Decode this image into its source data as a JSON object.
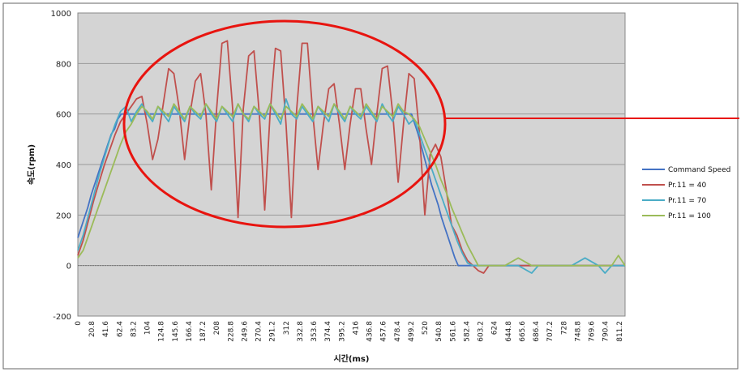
{
  "chart_data": {
    "type": "line",
    "title": "",
    "xlabel": "시간(ms)",
    "ylabel": "속도(rpm)",
    "ylim": [
      -200,
      1000
    ],
    "yticks": [
      -200,
      0,
      200,
      400,
      600,
      800,
      1000
    ],
    "grid": true,
    "legend_position": "right",
    "x_tick_labels": [
      "0",
      "20.8",
      "41.6",
      "62.4",
      "83.2",
      "104",
      "124.8",
      "145.6",
      "166.4",
      "187.2",
      "208",
      "228.8",
      "249.6",
      "270.4",
      "291.2",
      "312",
      "332.8",
      "353.6",
      "374.4",
      "395.2",
      "416",
      "436.8",
      "457.6",
      "478.4",
      "499.2",
      "520",
      "540.8",
      "561.6",
      "582.4",
      "603.2",
      "624",
      "644.8",
      "665.6",
      "686.4",
      "707.2",
      "728",
      "748.8",
      "769.6",
      "790.4",
      "811.2"
    ],
    "xlim": [
      0,
      820
    ],
    "series": [
      {
        "name": "Command Speed",
        "color": "#4472c4",
        "x": [
          0,
          5,
          10,
          15,
          20,
          25,
          30,
          35,
          40,
          45,
          50,
          55,
          60,
          65,
          70,
          500,
          505,
          510,
          515,
          520,
          525,
          530,
          535,
          540,
          545,
          550,
          555,
          560,
          565,
          570,
          820
        ],
        "y": [
          110,
          150,
          190,
          230,
          280,
          320,
          360,
          400,
          440,
          480,
          520,
          540,
          580,
          600,
          600,
          600,
          560,
          520,
          470,
          420,
          370,
          320,
          280,
          240,
          190,
          150,
          110,
          70,
          30,
          0,
          0
        ]
      },
      {
        "name": "Pr.11 =  40",
        "color": "#c0504d",
        "x": [
          0,
          8,
          16,
          24,
          32,
          40,
          48,
          56,
          64,
          72,
          80,
          88,
          96,
          104,
          112,
          120,
          128,
          136,
          144,
          152,
          160,
          168,
          176,
          184,
          192,
          200,
          208,
          216,
          224,
          232,
          240,
          248,
          256,
          264,
          272,
          280,
          288,
          296,
          304,
          312,
          320,
          328,
          336,
          344,
          352,
          360,
          368,
          376,
          384,
          392,
          400,
          408,
          416,
          424,
          432,
          440,
          448,
          456,
          464,
          472,
          480,
          488,
          496,
          504,
          512,
          520,
          528,
          536,
          544,
          552,
          560,
          568,
          576,
          584,
          592,
          600,
          608,
          616,
          820
        ],
        "y": [
          40,
          100,
          180,
          260,
          330,
          400,
          460,
          520,
          570,
          600,
          630,
          660,
          670,
          560,
          420,
          500,
          640,
          780,
          760,
          620,
          420,
          600,
          730,
          760,
          600,
          300,
          620,
          880,
          890,
          620,
          190,
          620,
          830,
          850,
          600,
          220,
          600,
          860,
          850,
          560,
          190,
          620,
          880,
          880,
          600,
          380,
          560,
          700,
          720,
          560,
          380,
          560,
          700,
          700,
          540,
          400,
          600,
          780,
          790,
          600,
          330,
          560,
          760,
          740,
          520,
          200,
          440,
          480,
          430,
          300,
          160,
          120,
          60,
          20,
          0,
          -20,
          -30,
          0,
          0
        ]
      },
      {
        "name": "Pr.11 =  70",
        "color": "#4bacc6",
        "x": [
          0,
          8,
          16,
          24,
          32,
          40,
          48,
          56,
          64,
          72,
          80,
          88,
          96,
          104,
          112,
          120,
          128,
          136,
          144,
          152,
          160,
          168,
          176,
          184,
          192,
          200,
          208,
          216,
          224,
          232,
          240,
          248,
          256,
          264,
          272,
          280,
          288,
          296,
          304,
          312,
          320,
          328,
          336,
          344,
          352,
          360,
          368,
          376,
          384,
          392,
          400,
          408,
          416,
          424,
          432,
          440,
          448,
          456,
          464,
          472,
          480,
          488,
          496,
          504,
          512,
          520,
          528,
          536,
          544,
          552,
          560,
          568,
          576,
          584,
          592,
          600,
          660,
          680,
          690,
          740,
          760,
          780,
          790,
          800,
          820
        ],
        "y": [
          60,
          120,
          200,
          280,
          360,
          430,
          500,
          560,
          610,
          630,
          570,
          610,
          640,
          600,
          570,
          630,
          600,
          570,
          630,
          600,
          570,
          630,
          600,
          580,
          640,
          600,
          570,
          630,
          600,
          570,
          640,
          600,
          570,
          630,
          600,
          580,
          640,
          600,
          560,
          660,
          600,
          580,
          630,
          600,
          570,
          630,
          600,
          570,
          640,
          600,
          570,
          630,
          600,
          580,
          630,
          600,
          570,
          640,
          600,
          570,
          630,
          600,
          560,
          580,
          520,
          460,
          400,
          340,
          280,
          220,
          160,
          100,
          50,
          10,
          0,
          0,
          0,
          -30,
          0,
          0,
          30,
          0,
          -30,
          0,
          0
        ]
      },
      {
        "name": "Pr.11 = 100",
        "color": "#9bbb59",
        "x": [
          0,
          8,
          16,
          24,
          32,
          40,
          48,
          56,
          64,
          72,
          80,
          88,
          96,
          104,
          112,
          120,
          128,
          136,
          144,
          152,
          160,
          168,
          176,
          184,
          192,
          200,
          208,
          216,
          224,
          232,
          240,
          248,
          256,
          264,
          272,
          280,
          288,
          296,
          304,
          312,
          320,
          328,
          336,
          344,
          352,
          360,
          368,
          376,
          384,
          392,
          400,
          408,
          416,
          424,
          432,
          440,
          448,
          456,
          464,
          472,
          480,
          488,
          496,
          504,
          512,
          520,
          528,
          536,
          544,
          552,
          560,
          568,
          576,
          584,
          592,
          600,
          640,
          660,
          680,
          700,
          720,
          760,
          800,
          810,
          820
        ],
        "y": [
          30,
          60,
          120,
          180,
          240,
          300,
          360,
          420,
          480,
          530,
          560,
          600,
          630,
          610,
          580,
          630,
          610,
          590,
          640,
          610,
          580,
          630,
          610,
          590,
          640,
          610,
          580,
          630,
          610,
          590,
          640,
          600,
          580,
          630,
          610,
          590,
          640,
          610,
          580,
          630,
          610,
          590,
          640,
          610,
          580,
          630,
          610,
          590,
          640,
          610,
          580,
          630,
          610,
          590,
          640,
          610,
          580,
          630,
          610,
          590,
          640,
          610,
          600,
          580,
          550,
          500,
          450,
          400,
          340,
          290,
          230,
          180,
          130,
          80,
          40,
          0,
          0,
          30,
          0,
          0,
          0,
          0,
          0,
          40,
          0
        ]
      }
    ]
  }
}
